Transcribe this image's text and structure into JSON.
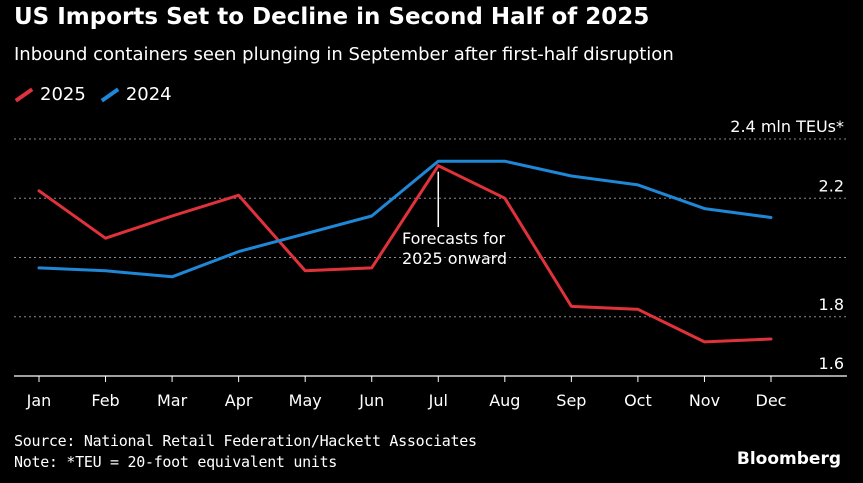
{
  "header": {
    "title": "US Imports Set to Decline in Second Half of 2025",
    "subtitle": "Inbound containers seen plunging in September after first-half disruption"
  },
  "legend": [
    {
      "label": "2025",
      "color": "#e0323b"
    },
    {
      "label": "2024",
      "color": "#1f87d6"
    }
  ],
  "chart_data": {
    "type": "line",
    "categories": [
      "Jan",
      "Feb",
      "Mar",
      "Apr",
      "May",
      "Jun",
      "Jul",
      "Aug",
      "Sep",
      "Oct",
      "Nov",
      "Dec"
    ],
    "series": [
      {
        "name": "2025",
        "color": "#e0323b",
        "values": [
          2.225,
          2.065,
          2.14,
          2.21,
          1.955,
          1.965,
          2.31,
          2.2,
          1.835,
          1.825,
          1.715,
          1.725
        ]
      },
      {
        "name": "2024",
        "color": "#1f87d6",
        "values": [
          1.965,
          1.955,
          1.935,
          2.02,
          2.08,
          2.14,
          2.325,
          2.325,
          2.275,
          2.245,
          2.165,
          2.135
        ]
      }
    ],
    "ylim": [
      1.6,
      2.4
    ],
    "yticks": [
      {
        "value": 2.4,
        "label": "2.4 mln TEUs*"
      },
      {
        "value": 2.2,
        "label": "2.2"
      },
      {
        "value": 2.0,
        "label": ""
      },
      {
        "value": 1.8,
        "label": "1.8"
      },
      {
        "value": 1.6,
        "label": "1.6"
      }
    ],
    "grid": true,
    "legend_position": "top-left",
    "annotation": {
      "category": "Jul",
      "lines": [
        "Forecasts for",
        "2025 onward"
      ]
    }
  },
  "footer": {
    "source": "Source: National Retail Federation/Hackett Associates",
    "note": "Note: *TEU = 20-foot equivalent units",
    "brand": "Bloomberg"
  }
}
